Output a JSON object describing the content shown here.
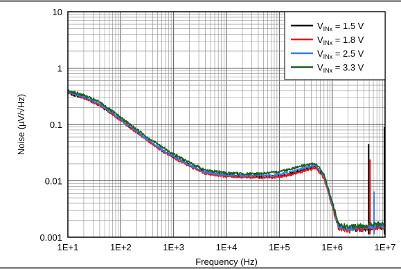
{
  "chart_data": {
    "type": "line",
    "xscale": "log",
    "yscale": "log",
    "xlim": [
      10,
      10000000
    ],
    "ylim": [
      0.001,
      10
    ],
    "grid": true,
    "legend_position": "top-right",
    "xlabel": "Frequency (Hz)",
    "ylabel": "Noise (µV/√Hz)",
    "x_ticks": [
      "1E+1",
      "1E+2",
      "1E+3",
      "1E+4",
      "1E+5",
      "1E+6",
      "1E+7"
    ],
    "y_ticks": [
      "0.001",
      "0.01",
      "0.1",
      "1",
      "10"
    ],
    "series": [
      {
        "name": "V",
        "name_sub": "INx",
        "name_suffix": " = 1.5 V",
        "color": "#000000",
        "points": [
          [
            10,
            0.36
          ],
          [
            20,
            0.3
          ],
          [
            40,
            0.22
          ],
          [
            80,
            0.14
          ],
          [
            150,
            0.09
          ],
          [
            300,
            0.055
          ],
          [
            600,
            0.035
          ],
          [
            1000,
            0.027
          ],
          [
            2000,
            0.019
          ],
          [
            4000,
            0.014
          ],
          [
            10000,
            0.0125
          ],
          [
            30000,
            0.012
          ],
          [
            80000,
            0.012
          ],
          [
            150000,
            0.013
          ],
          [
            300000,
            0.016
          ],
          [
            500000,
            0.018
          ],
          [
            700000,
            0.012
          ],
          [
            1000000,
            0.004
          ],
          [
            1300000,
            0.0016
          ],
          [
            2000000,
            0.0014
          ],
          [
            4000000,
            0.0014
          ],
          [
            7000000,
            0.0015
          ],
          [
            10000000,
            0.0015
          ]
        ],
        "spikes": [
          [
            4900000,
            0.045
          ],
          [
            10000000,
            0.09
          ]
        ]
      },
      {
        "name": "V",
        "name_sub": "INx",
        "name_suffix": " = 1.8 V",
        "color": "#ee1111",
        "points": [
          [
            10,
            0.37
          ],
          [
            20,
            0.3
          ],
          [
            40,
            0.22
          ],
          [
            80,
            0.14
          ],
          [
            150,
            0.088
          ],
          [
            300,
            0.054
          ],
          [
            600,
            0.034
          ],
          [
            1000,
            0.026
          ],
          [
            2000,
            0.018
          ],
          [
            4000,
            0.0135
          ],
          [
            10000,
            0.012
          ],
          [
            30000,
            0.0115
          ],
          [
            80000,
            0.0115
          ],
          [
            150000,
            0.0125
          ],
          [
            300000,
            0.015
          ],
          [
            500000,
            0.017
          ],
          [
            700000,
            0.011
          ],
          [
            1000000,
            0.0035
          ],
          [
            1300000,
            0.0015
          ],
          [
            2000000,
            0.0013
          ],
          [
            4000000,
            0.0014
          ],
          [
            7000000,
            0.0015
          ],
          [
            10000000,
            0.0015
          ]
        ],
        "spikes": [
          [
            5200000,
            0.024
          ]
        ]
      },
      {
        "name": "V",
        "name_sub": "INx",
        "name_suffix": " = 2.5 V",
        "color": "#3b7ddd",
        "points": [
          [
            10,
            0.38
          ],
          [
            20,
            0.31
          ],
          [
            40,
            0.23
          ],
          [
            80,
            0.145
          ],
          [
            150,
            0.092
          ],
          [
            300,
            0.056
          ],
          [
            600,
            0.036
          ],
          [
            1000,
            0.027
          ],
          [
            2000,
            0.019
          ],
          [
            4000,
            0.014
          ],
          [
            10000,
            0.0128
          ],
          [
            30000,
            0.0122
          ],
          [
            80000,
            0.0125
          ],
          [
            150000,
            0.014
          ],
          [
            300000,
            0.017
          ],
          [
            500000,
            0.019
          ],
          [
            700000,
            0.012
          ],
          [
            1000000,
            0.0038
          ],
          [
            1300000,
            0.0016
          ],
          [
            2000000,
            0.0014
          ],
          [
            4000000,
            0.0015
          ],
          [
            7000000,
            0.0016
          ],
          [
            10000000,
            0.0016
          ]
        ],
        "spikes": [
          [
            6200000,
            0.0065
          ]
        ]
      },
      {
        "name": "V",
        "name_sub": "INx",
        "name_suffix": " = 3.3 V",
        "color": "#1b5e20",
        "points": [
          [
            10,
            0.4
          ],
          [
            20,
            0.33
          ],
          [
            40,
            0.25
          ],
          [
            80,
            0.155
          ],
          [
            150,
            0.1
          ],
          [
            300,
            0.062
          ],
          [
            600,
            0.04
          ],
          [
            1000,
            0.03
          ],
          [
            2000,
            0.021
          ],
          [
            4000,
            0.0155
          ],
          [
            10000,
            0.0138
          ],
          [
            30000,
            0.0132
          ],
          [
            80000,
            0.014
          ],
          [
            150000,
            0.016
          ],
          [
            300000,
            0.019
          ],
          [
            500000,
            0.02
          ],
          [
            700000,
            0.013
          ],
          [
            1000000,
            0.0042
          ],
          [
            1300000,
            0.0017
          ],
          [
            2000000,
            0.0015
          ],
          [
            4000000,
            0.0016
          ],
          [
            7000000,
            0.0017
          ],
          [
            10000000,
            0.0017
          ]
        ],
        "spikes": []
      }
    ]
  }
}
